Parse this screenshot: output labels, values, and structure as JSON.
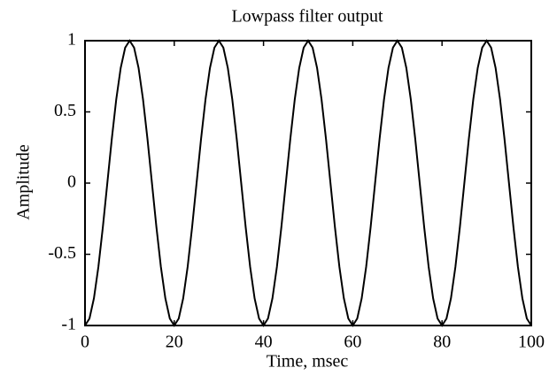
{
  "chart_data": {
    "type": "line",
    "title": "Lowpass filter output",
    "x_label": "Time, msec",
    "y_label": "Amplitude",
    "x": [
      0,
      1,
      2,
      3,
      4,
      5,
      6,
      7,
      8,
      9,
      10,
      11,
      12,
      13,
      14,
      15,
      16,
      17,
      18,
      19,
      20,
      21,
      22,
      23,
      24,
      25,
      26,
      27,
      28,
      29,
      30,
      31,
      32,
      33,
      34,
      35,
      36,
      37,
      38,
      39,
      40,
      41,
      42,
      43,
      44,
      45,
      46,
      47,
      48,
      49,
      50,
      51,
      52,
      53,
      54,
      55,
      56,
      57,
      58,
      59,
      60,
      61,
      62,
      63,
      64,
      65,
      66,
      67,
      68,
      69,
      70,
      71,
      72,
      73,
      74,
      75,
      76,
      77,
      78,
      79,
      80,
      81,
      82,
      83,
      84,
      85,
      86,
      87,
      88,
      89,
      90,
      91,
      92,
      93,
      94,
      95,
      96,
      97,
      98,
      99,
      100
    ],
    "series": [
      {
        "color": "#000000",
        "values": [
          -1,
          -0.951,
          -0.809,
          -0.588,
          -0.309,
          0,
          0.309,
          0.588,
          0.809,
          0.951,
          1,
          0.951,
          0.809,
          0.588,
          0.309,
          0,
          -0.309,
          -0.588,
          -0.809,
          -0.951,
          -1,
          -0.951,
          -0.809,
          -0.588,
          -0.309,
          0,
          0.309,
          0.588,
          0.809,
          0.951,
          1,
          0.951,
          0.809,
          0.588,
          0.309,
          0,
          -0.309,
          -0.588,
          -0.809,
          -0.951,
          -1,
          -0.951,
          -0.809,
          -0.588,
          -0.309,
          0,
          0.309,
          0.588,
          0.809,
          0.951,
          1,
          0.951,
          0.809,
          0.588,
          0.309,
          0,
          -0.309,
          -0.588,
          -0.809,
          -0.951,
          -1,
          -0.951,
          -0.809,
          -0.588,
          -0.309,
          0,
          0.309,
          0.588,
          0.809,
          0.951,
          1,
          0.951,
          0.809,
          0.588,
          0.309,
          0,
          -0.309,
          -0.588,
          -0.809,
          -0.951,
          -1,
          -0.951,
          -0.809,
          -0.588,
          -0.309,
          0,
          0.309,
          0.588,
          0.809,
          0.951,
          1,
          0.951,
          0.809,
          0.588,
          0.309,
          0,
          -0.309,
          -0.588,
          -0.809,
          -0.951,
          -1
        ]
      }
    ],
    "xlim": [
      0,
      100
    ],
    "xticks": [
      0,
      20,
      40,
      60,
      80,
      100
    ],
    "ylim": [
      -1,
      1
    ],
    "yticks": [
      -1,
      -0.5,
      0,
      0.5,
      1
    ],
    "grid": false
  }
}
